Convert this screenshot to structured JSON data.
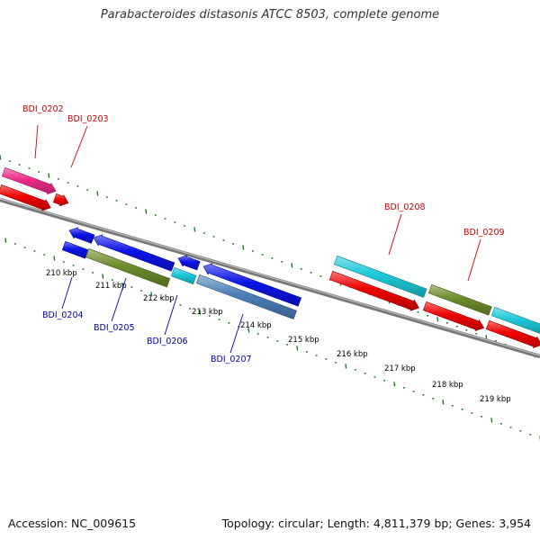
{
  "title": "Parabacteroides distasonis ATCC 8503, complete genome",
  "footer": {
    "accession": "Accession: NC_009615",
    "summary": "Topology: circular; Length: 4,811,379 bp; Genes: 3,954"
  },
  "colors": {
    "backbone": "#888888",
    "tick": "#1a7d1a",
    "top_label": "#cc0000",
    "bottom_label": "#0000aa",
    "scale_label": "#000000",
    "pink": "#ee2a8a",
    "red": "#ee0000",
    "blue": "#0a14e6",
    "olive": "#6b8c2a",
    "cyan": "#1cc8d8",
    "steel": "#4b7fb8"
  },
  "scale": {
    "unit": "kbp",
    "labels": [
      "210 kbp",
      "211 kbp",
      "212 kbp",
      "213 kbp",
      "214 kbp",
      "215 kbp",
      "216 kbp",
      "217 kbp",
      "218 kbp",
      "219 kbp"
    ]
  },
  "gene_labels_top": [
    "BDI_0202",
    "BDI_0203",
    "BDI_0208",
    "BDI_0209"
  ],
  "gene_labels_bottom": [
    "BDI_0204",
    "BDI_0205",
    "BDI_0206",
    "BDI_0207"
  ],
  "features": [
    {
      "name": "pink-feature",
      "color": "pink",
      "strand": "plus-outer",
      "dir": "right"
    },
    {
      "name": "red-feature-1",
      "color": "red",
      "strand": "plus",
      "dir": "right"
    },
    {
      "name": "red-feature-2",
      "color": "red",
      "strand": "plus",
      "dir": "right"
    },
    {
      "name": "blue-feature-1",
      "color": "blue",
      "strand": "minus",
      "dir": "left"
    },
    {
      "name": "blue-feature-2",
      "color": "blue",
      "strand": "minus",
      "dir": "left"
    },
    {
      "name": "blue-feature-3",
      "color": "blue",
      "strand": "minus",
      "dir": "left"
    },
    {
      "name": "blue-feature-4",
      "color": "blue",
      "strand": "minus-outer",
      "dir": "left"
    },
    {
      "name": "olive-feature-1",
      "color": "olive",
      "strand": "minus-outer",
      "dir": "none"
    },
    {
      "name": "cyan-feature-1",
      "color": "cyan",
      "strand": "minus-outer",
      "dir": "none"
    },
    {
      "name": "steel-feature",
      "color": "steel",
      "strand": "minus-outer",
      "dir": "none"
    },
    {
      "name": "cyan-feature-2",
      "color": "cyan",
      "strand": "plus-outer",
      "dir": "none"
    },
    {
      "name": "olive-feature-2",
      "color": "olive",
      "strand": "plus-outer",
      "dir": "none"
    },
    {
      "name": "cyan-feature-3",
      "color": "cyan",
      "strand": "plus-outer",
      "dir": "none"
    },
    {
      "name": "red-feature-3",
      "color": "red",
      "strand": "plus",
      "dir": "right"
    },
    {
      "name": "red-feature-4",
      "color": "red",
      "strand": "plus",
      "dir": "right"
    },
    {
      "name": "red-feature-5",
      "color": "red",
      "strand": "plus",
      "dir": "right"
    }
  ]
}
